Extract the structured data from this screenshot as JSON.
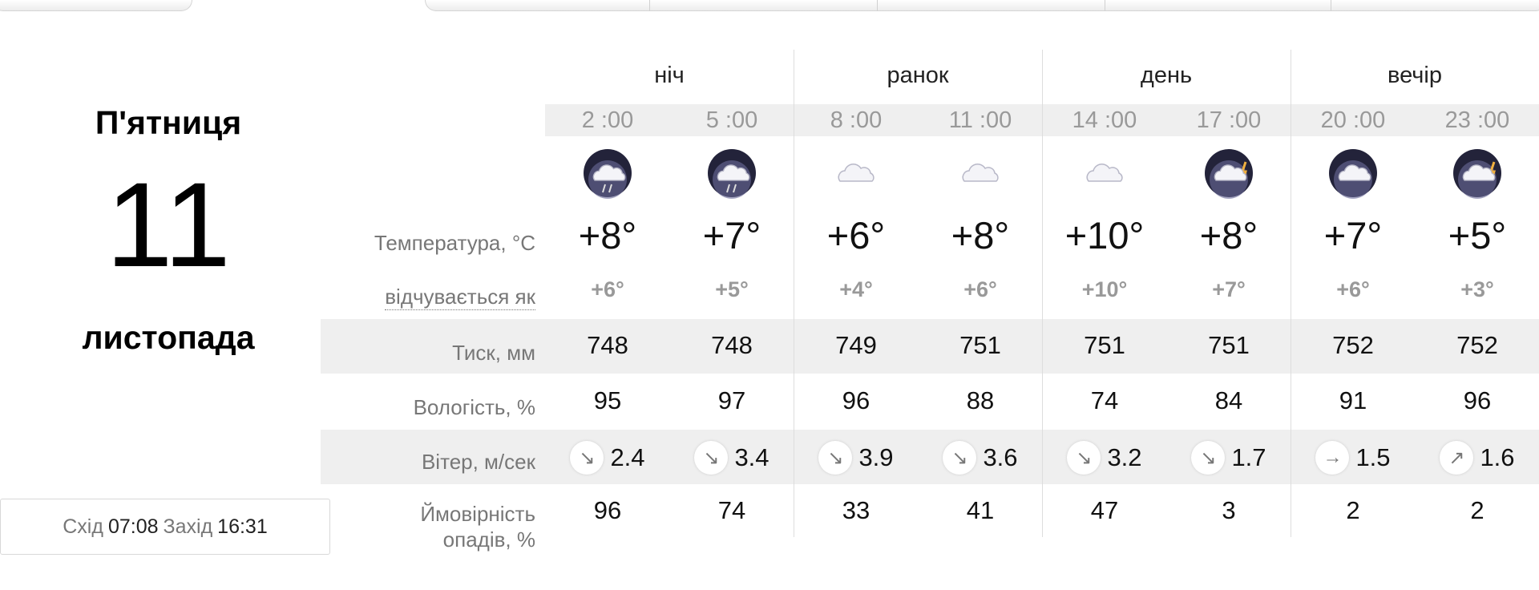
{
  "day": {
    "name": "П'ятниця",
    "number": "11",
    "month": "листопада"
  },
  "sun": {
    "rise_label": "Схід",
    "rise": "07:08",
    "set_label": "Захід",
    "set": "16:31"
  },
  "periods": [
    "ніч",
    "ранок",
    "день",
    "вечір"
  ],
  "labels": {
    "temperature": "Температура, °C",
    "feels": "відчувається як",
    "pressure": "Тиск, мм",
    "humidity": "Вологість, %",
    "wind": "Вітер, м/сек",
    "precip1": "Ймовірність",
    "precip2": "опадів, %"
  },
  "hours": [
    {
      "time": "2 :00",
      "icon": "overcast-rain",
      "temp": "+8°",
      "feels": "+6°",
      "pressure": "748",
      "humidity": "95",
      "wind_dir": "↘",
      "wind": "2.4",
      "precip": "96"
    },
    {
      "time": "5 :00",
      "icon": "overcast-rain",
      "temp": "+7°",
      "feels": "+5°",
      "pressure": "748",
      "humidity": "97",
      "wind_dir": "↘",
      "wind": "3.4",
      "precip": "74"
    },
    {
      "time": "8 :00",
      "icon": "cloud",
      "temp": "+6°",
      "feels": "+4°",
      "pressure": "749",
      "humidity": "96",
      "wind_dir": "↘",
      "wind": "3.9",
      "precip": "33"
    },
    {
      "time": "11 :00",
      "icon": "cloud",
      "temp": "+8°",
      "feels": "+6°",
      "pressure": "751",
      "humidity": "88",
      "wind_dir": "↘",
      "wind": "3.6",
      "precip": "41"
    },
    {
      "time": "14 :00",
      "icon": "cloud",
      "temp": "+10°",
      "feels": "+10°",
      "pressure": "751",
      "humidity": "74",
      "wind_dir": "↘",
      "wind": "3.2",
      "precip": "47"
    },
    {
      "time": "17 :00",
      "icon": "night-cloudy",
      "temp": "+8°",
      "feels": "+7°",
      "pressure": "751",
      "humidity": "84",
      "wind_dir": "↘",
      "wind": "1.7",
      "precip": "3"
    },
    {
      "time": "20 :00",
      "icon": "night-overcast",
      "temp": "+7°",
      "feels": "+6°",
      "pressure": "752",
      "humidity": "91",
      "wind_dir": "→",
      "wind": "1.5",
      "precip": "2"
    },
    {
      "time": "23 :00",
      "icon": "night-cloudy",
      "temp": "+5°",
      "feels": "+3°",
      "pressure": "752",
      "humidity": "96",
      "wind_dir": "↗",
      "wind": "1.6",
      "precip": "2"
    }
  ]
}
